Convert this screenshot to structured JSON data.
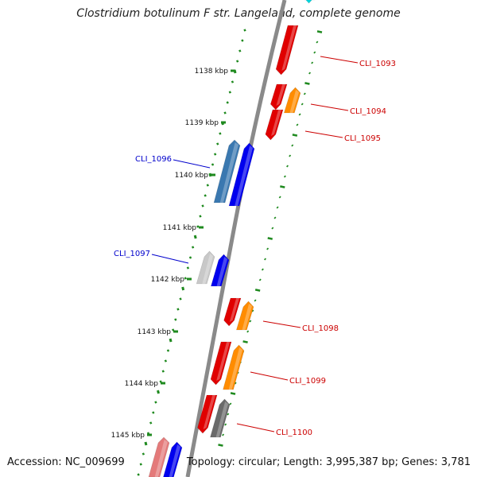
{
  "title": "Clostridium botulinum F str. Langeland, complete genome",
  "footer": {
    "accession": "Accession: NC_009699",
    "topology": "Topology: circular; Length: 3,995,387 bp; Genes: 3,781"
  },
  "colors": {
    "backbone": "#8a8a8a",
    "ticks": "#1f8a1f",
    "red": "#e00000",
    "orange": "#ff8c00",
    "blue": "#0000ee",
    "steelblue": "#3a78b0",
    "gray": "#6a6a6a",
    "lightgray": "#c8c8c8",
    "pink": "#e47a7a",
    "cyan": "#00d8e0",
    "forwardLabel": "#cc0000",
    "reverseLabel": "#0000cc"
  },
  "scale_labels": [
    "1138 kbp",
    "1139 kbp",
    "1140 kbp",
    "1141 kbp",
    "1142 kbp",
    "1143 kbp",
    "1144 kbp",
    "1145 kbp"
  ],
  "gene_labels_forward": [
    "CLI_1093",
    "CLI_1094",
    "CLI_1095",
    "CLI_1098",
    "CLI_1099",
    "CLI_1100"
  ],
  "gene_labels_reverse": [
    "CLI_1096",
    "CLI_1097"
  ]
}
